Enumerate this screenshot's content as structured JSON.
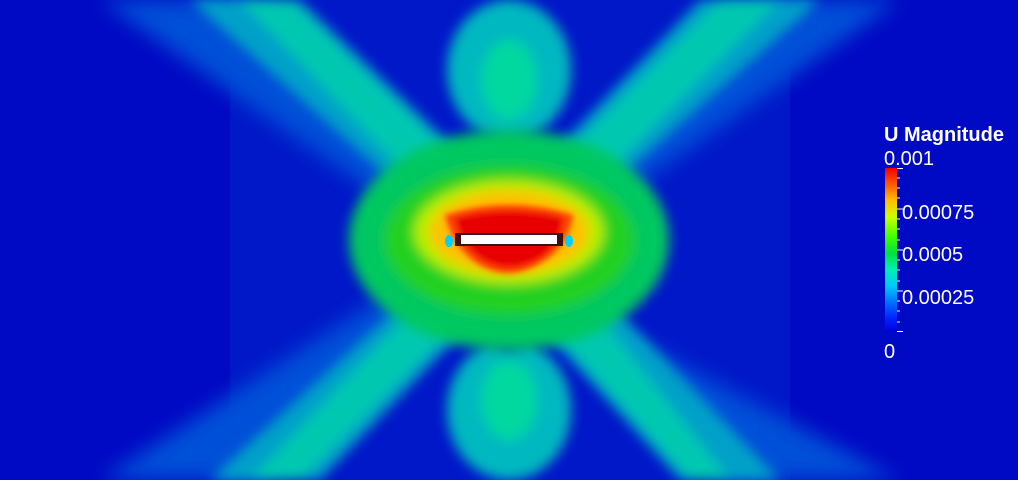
{
  "legend": {
    "title": "U Magnitude",
    "labels": [
      "0.001",
      "0.00075",
      "0.0005",
      "0.00025",
      "0"
    ],
    "range": [
      0,
      0.001
    ],
    "colormap": [
      "#0000e0",
      "#0020ff",
      "#0070ff",
      "#00c8ff",
      "#00f0b0",
      "#00e040",
      "#40ff00",
      "#c8ff00",
      "#ffc000",
      "#ff5a00",
      "#f00000"
    ]
  },
  "colors": {
    "background": "#0018c8",
    "body": "#ffffff",
    "body_outline": "#401010"
  }
}
